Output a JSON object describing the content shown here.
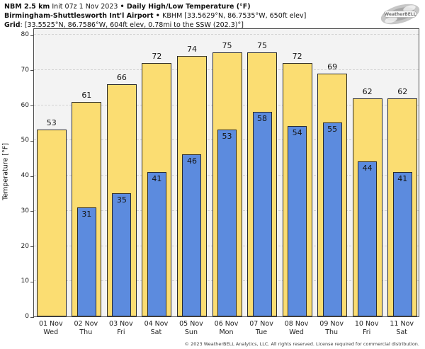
{
  "header": {
    "model": "NBM 2.5 km",
    "init": " Init 07z 1 Nov 2023 ",
    "sep1": "• ",
    "title": "Daily High/Low Temperature (°F)",
    "station_name": "Birmingham-Shuttlesworth Int'l Airport",
    "sep2": " • ",
    "station_details": "KBHM [33.5629°N, 86.7535°W, 650ft elev]",
    "grid_label": "Grid",
    "grid_details": ": [33.5525°N, 86.7586°W, 604ft elev, 0.78mi to the SSW (202.3)°]"
  },
  "logo": {
    "brand": "WeatherBELL"
  },
  "chart_data": {
    "type": "bar",
    "title": "Daily High/Low Temperature (°F)",
    "ylabel": "Temperature [°F]",
    "ylim": [
      0,
      82
    ],
    "yticks": [
      0,
      10,
      20,
      30,
      40,
      50,
      60,
      70,
      80
    ],
    "grid": "horizontal dashed",
    "legend": "none",
    "categories_date": [
      "01 Nov",
      "02 Nov",
      "03 Nov",
      "04 Nov",
      "05 Nov",
      "06 Nov",
      "07 Nov",
      "08 Nov",
      "09 Nov",
      "10 Nov",
      "11 Nov"
    ],
    "categories_day": [
      "Wed",
      "Thu",
      "Fri",
      "Sat",
      "Sun",
      "Mon",
      "Tue",
      "Wed",
      "Thu",
      "Fri",
      "Sat"
    ],
    "series": [
      {
        "name": "High",
        "color": "#fbdd72",
        "values": [
          53,
          61,
          66,
          72,
          74,
          75,
          75,
          72,
          69,
          62,
          62
        ]
      },
      {
        "name": "Low",
        "color": "#5c8bde",
        "values": [
          null,
          31,
          35,
          41,
          46,
          53,
          58,
          54,
          55,
          44,
          41
        ]
      }
    ]
  },
  "colors": {
    "high_bar": "#fbdd72",
    "low_bar": "#5c8bde",
    "bar_border": "#2b2b2b",
    "plot_bg": "#f3f3f3",
    "gridline": "#d2d2d2"
  },
  "footer": {
    "copyright": "© 2023 WeatherBELL Analytics, LLC. All rights reserved. License required for commercial distribution."
  }
}
